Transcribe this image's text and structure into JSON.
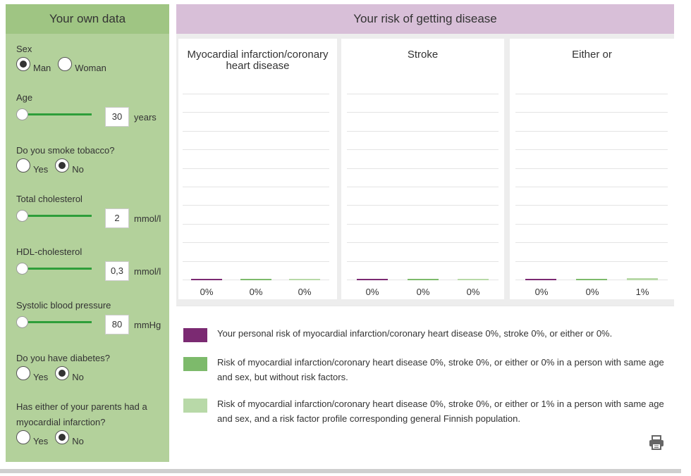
{
  "sidebar": {
    "title": "Your own data",
    "sex": {
      "label": "Sex",
      "options": [
        "Man",
        "Woman"
      ],
      "selected": "Man"
    },
    "age": {
      "label": "Age",
      "value": "30",
      "unit": "years",
      "slider_fraction": 0
    },
    "smoke": {
      "label": "Do you smoke tobacco?",
      "options": [
        "Yes",
        "No"
      ],
      "selected": "No"
    },
    "total_cholesterol": {
      "label": "Total cholesterol",
      "value": "2",
      "unit": "mmol/l",
      "slider_fraction": 0
    },
    "hdl": {
      "label": "HDL-cholesterol",
      "value": "0,3",
      "unit": "mmol/l",
      "slider_fraction": 0
    },
    "bp": {
      "label": "Systolic blood pressure",
      "value": "80",
      "unit": "mmHg",
      "slider_fraction": 0
    },
    "diabetes": {
      "label": "Do you have diabetes?",
      "options": [
        "Yes",
        "No"
      ],
      "selected": "No"
    },
    "parents": {
      "label": "Has either of your parents had a myocardial infarction?",
      "options": [
        "Yes",
        "No"
      ],
      "selected": "No"
    }
  },
  "header": {
    "title": "Your risk of getting disease"
  },
  "colors": {
    "personal": "#7b2a72",
    "no_risk": "#7dba6b",
    "population": "#b8d9a8"
  },
  "chart_data": [
    {
      "type": "bar",
      "title": "Myocardial infarction/coronary heart disease",
      "categories": [
        "Personal",
        "No risk factors",
        "Finnish population"
      ],
      "values": [
        0,
        0,
        0
      ],
      "labels": [
        "0%",
        "0%",
        "0%"
      ]
    },
    {
      "type": "bar",
      "title": "Stroke",
      "categories": [
        "Personal",
        "No risk factors",
        "Finnish population"
      ],
      "values": [
        0,
        0,
        0
      ],
      "labels": [
        "0%",
        "0%",
        "0%"
      ]
    },
    {
      "type": "bar",
      "title": "Either or",
      "categories": [
        "Personal",
        "No risk factors",
        "Finnish population"
      ],
      "values": [
        0,
        0,
        1
      ],
      "labels": [
        "0%",
        "0%",
        "1%"
      ]
    }
  ],
  "legend": {
    "items": [
      "Your personal risk of myocardial infarction/coronary heart disease 0%, stroke 0%, or either or 0%.",
      "Risk of myocardial infarction/coronary heart disease 0%, stroke 0%, or either or 0% in a person with same age and sex, but without risk factors.",
      "Risk of myocardial infarction/coronary heart disease 0%, stroke 0%, or either or 1% in a person with same age and sex, and a risk factor profile corresponding general Finnish population."
    ],
    "print_icon": "printer-icon"
  }
}
